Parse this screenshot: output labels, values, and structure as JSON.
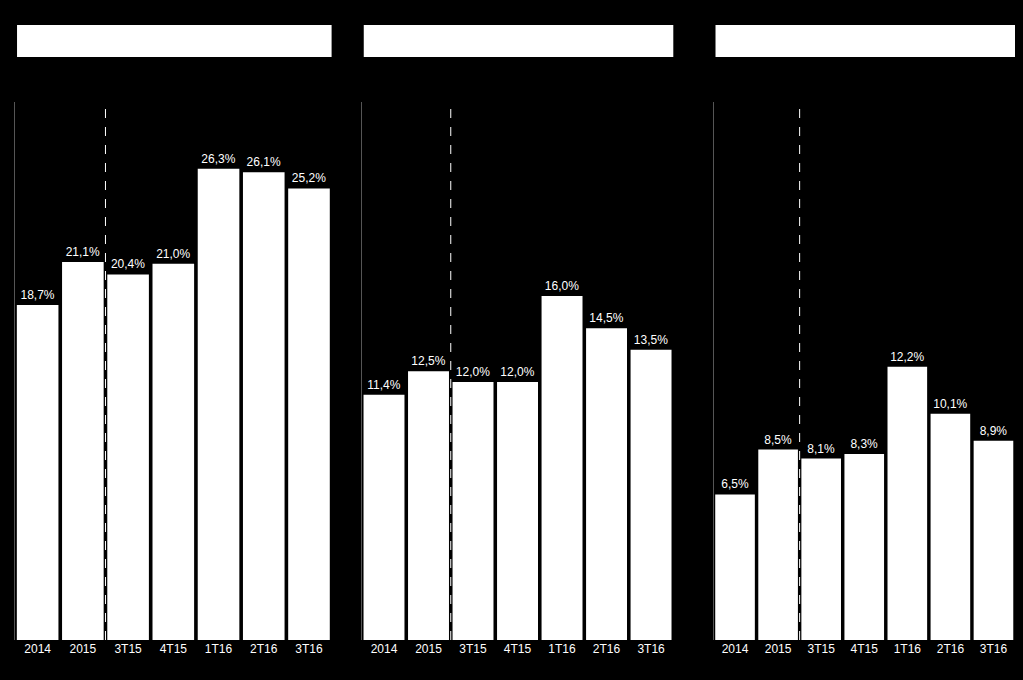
{
  "chart_data": [
    {
      "type": "bar",
      "categories": [
        "2014",
        "2015",
        "3T15",
        "4T15",
        "1T16",
        "2T16",
        "3T16"
      ],
      "values": [
        18.7,
        21.1,
        20.4,
        21.0,
        26.3,
        26.1,
        25.2
      ],
      "value_labels": [
        "18,7%",
        "21,1%",
        "20,4%",
        "21,0%",
        "26,3%",
        "26,1%",
        "25,2%"
      ],
      "color": "#ffffff",
      "ylim": [
        0,
        30
      ],
      "data_labels": true,
      "tick_labels": "x"
    },
    {
      "type": "bar",
      "categories": [
        "2014",
        "2015",
        "3T15",
        "4T15",
        "1T16",
        "2T16",
        "3T16"
      ],
      "values": [
        11.4,
        12.5,
        12.0,
        12.0,
        16.0,
        14.5,
        13.5
      ],
      "value_labels": [
        "11,4%",
        "12,5%",
        "12,0%",
        "12,0%",
        "16,0%",
        "14,5%",
        "13,5%"
      ],
      "color": "#ffffff",
      "ylim": [
        0,
        25
      ],
      "data_labels": true,
      "tick_labels": "x"
    },
    {
      "type": "bar",
      "categories": [
        "2014",
        "2015",
        "3T15",
        "4T15",
        "1T16",
        "2T16",
        "3T16"
      ],
      "values": [
        6.5,
        8.5,
        8.1,
        8.3,
        12.2,
        10.1,
        8.9
      ],
      "value_labels": [
        "6,5%",
        "8,5%",
        "8,1%",
        "8,3%",
        "12,2%",
        "10,1%",
        "8,9%"
      ],
      "color": "#ffffff",
      "ylim": [
        0,
        24
      ],
      "data_labels": true,
      "tick_labels": "x"
    }
  ]
}
